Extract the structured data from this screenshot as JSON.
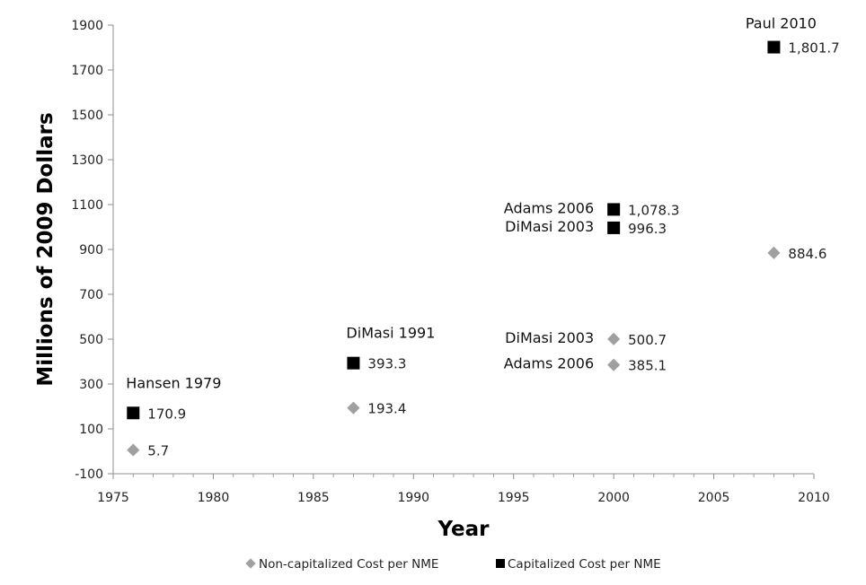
{
  "chart_data": {
    "type": "scatter",
    "title": "",
    "xlabel": "Year",
    "ylabel": "Millions of 2009 Dollars",
    "xlim": [
      1975,
      2010
    ],
    "ylim": [
      -100,
      1900
    ],
    "x_ticks": [
      1975,
      1980,
      1985,
      1990,
      1995,
      2000,
      2005,
      2010
    ],
    "x_tick_labels": [
      "1975",
      "1980",
      "1985",
      "1990",
      "1995",
      "2000",
      "2005",
      "2010"
    ],
    "y_ticks": [
      -100,
      100,
      300,
      500,
      700,
      900,
      1100,
      1300,
      1500,
      1700,
      1900
    ],
    "y_tick_labels": [
      "-100",
      "100",
      "300",
      "500",
      "700",
      "900",
      "1100",
      "1300",
      "1500",
      "1700",
      "1900"
    ],
    "grid": false,
    "legend_position": "bottom",
    "series": [
      {
        "name": "Non-capitalized Cost per NME",
        "marker": "diamond",
        "color": "#a0a0a0",
        "points": [
          {
            "x": 1976,
            "y": 5.7,
            "label": "5.7"
          },
          {
            "x": 1987,
            "y": 193.4,
            "label": "193.4"
          },
          {
            "x": 2000,
            "y": 500.7,
            "label": "500.7"
          },
          {
            "x": 2000,
            "y": 385.1,
            "label": "385.1"
          },
          {
            "x": 2008,
            "y": 884.6,
            "label": "884.6"
          }
        ]
      },
      {
        "name": "Capitalized Cost per NME",
        "marker": "square",
        "color": "#000000",
        "points": [
          {
            "x": 1976,
            "y": 170.9,
            "label": "170.9"
          },
          {
            "x": 1987,
            "y": 393.3,
            "label": "393.3"
          },
          {
            "x": 2000,
            "y": 1078.3,
            "label": "1,078.3"
          },
          {
            "x": 2000,
            "y": 996.3,
            "label": "996.3"
          },
          {
            "x": 2008,
            "y": 1801.7,
            "label": "1,801.7"
          }
        ]
      }
    ],
    "annotations": [
      {
        "text": "Hansen 1979",
        "x": 1976,
        "y": 170.9
      },
      {
        "text": "DiMasi 1991",
        "x": 1987,
        "y": 393.3
      },
      {
        "text": "Adams 2006",
        "x": 2000,
        "y": 1078.3
      },
      {
        "text": "DiMasi 2003",
        "x": 2000,
        "y": 996.3
      },
      {
        "text": "DiMasi 2003",
        "x": 2000,
        "y": 500.7
      },
      {
        "text": "Adams 2006",
        "x": 2000,
        "y": 385.1
      },
      {
        "text": "Paul 2010",
        "x": 2008,
        "y": 1801.7
      }
    ]
  }
}
